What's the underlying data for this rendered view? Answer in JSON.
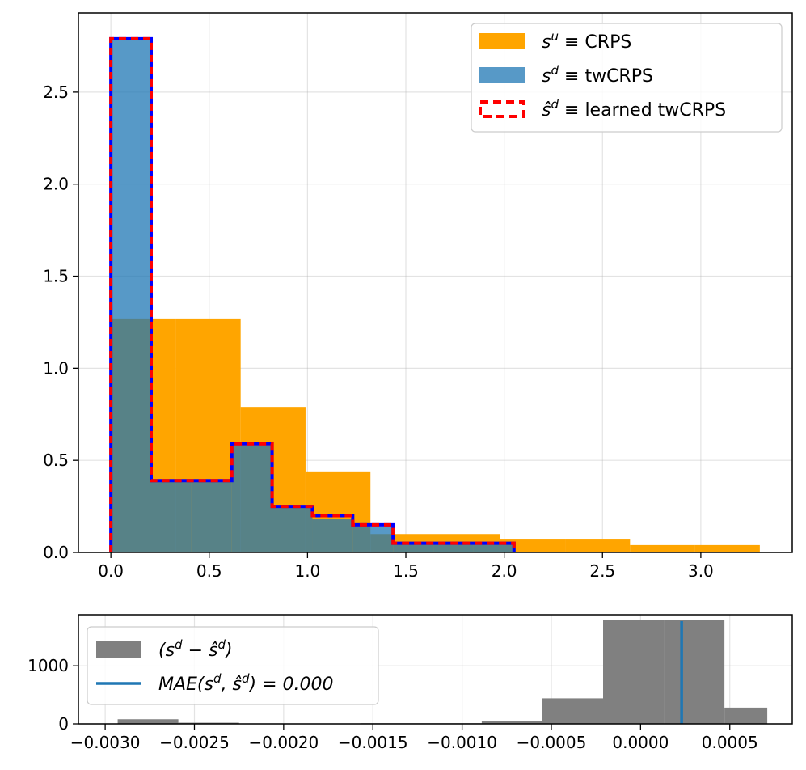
{
  "chart_data": [
    {
      "type": "histogram",
      "title": "",
      "xlabel": "",
      "ylabel": "",
      "xlim": [
        -0.165,
        3.465
      ],
      "ylim": [
        0,
        2.93
      ],
      "grid": true,
      "legend_position": "top-right",
      "x_ticks": [
        0.0,
        0.5,
        1.0,
        1.5,
        2.0,
        2.5,
        3.0
      ],
      "x_tick_labels": [
        "0.0",
        "0.5",
        "1.0",
        "1.5",
        "2.0",
        "2.5",
        "3.0"
      ],
      "y_ticks": [
        0.0,
        0.5,
        1.0,
        1.5,
        2.0,
        2.5
      ],
      "y_tick_labels": [
        "0.0",
        "0.5",
        "1.0",
        "1.5",
        "2.0",
        "2.5"
      ],
      "series": [
        {
          "name": "CRPS",
          "legend_symbol": "s",
          "legend_superscript": "u",
          "legend_relation": "≡",
          "style": "filled",
          "color": "#FFA500",
          "opacity": 1,
          "bins": [
            [
              0.0,
              0.33,
              1.27
            ],
            [
              0.33,
              0.66,
              1.27
            ],
            [
              0.66,
              0.99,
              0.79
            ],
            [
              0.99,
              1.32,
              0.44
            ],
            [
              1.32,
              1.65,
              0.1
            ],
            [
              1.65,
              1.98,
              0.1
            ],
            [
              1.98,
              2.31,
              0.07
            ],
            [
              2.31,
              2.64,
              0.07
            ],
            [
              2.64,
              2.97,
              0.04
            ],
            [
              2.97,
              3.3,
              0.04
            ]
          ]
        },
        {
          "name": "twCRPS",
          "legend_symbol": "s",
          "legend_superscript": "d",
          "legend_relation": "≡",
          "style": "filled",
          "color": "#1F77B4",
          "opacity": 0.75,
          "bins": [
            [
              0.0,
              0.205,
              2.79
            ],
            [
              0.205,
              0.41,
              0.39
            ],
            [
              0.41,
              0.615,
              0.39
            ],
            [
              0.615,
              0.82,
              0.58
            ],
            [
              0.82,
              1.025,
              0.25
            ],
            [
              1.025,
              1.23,
              0.18
            ],
            [
              1.23,
              1.435,
              0.14
            ],
            [
              1.435,
              1.64,
              0.05
            ],
            [
              1.64,
              1.845,
              0.05
            ],
            [
              1.845,
              2.05,
              0.05
            ]
          ]
        },
        {
          "name": "learned twCRPS",
          "legend_symbol": "ŝ",
          "legend_superscript": "d",
          "legend_relation": "≡",
          "style": "step-dashed",
          "color": "#FF0000",
          "dash_color": "#0000FF",
          "bins": [
            [
              0.0,
              0.205,
              2.79
            ],
            [
              0.205,
              0.41,
              0.39
            ],
            [
              0.41,
              0.615,
              0.39
            ],
            [
              0.615,
              0.82,
              0.59
            ],
            [
              0.82,
              1.025,
              0.25
            ],
            [
              1.025,
              1.23,
              0.2
            ],
            [
              1.23,
              1.435,
              0.15
            ],
            [
              1.435,
              1.64,
              0.05
            ],
            [
              1.64,
              1.845,
              0.05
            ],
            [
              1.845,
              2.05,
              0.05
            ]
          ]
        }
      ]
    },
    {
      "type": "histogram",
      "title": "",
      "xlabel": "",
      "ylabel": "",
      "xlim": [
        -0.00315,
        0.00085
      ],
      "ylim": [
        0,
        1880
      ],
      "grid": true,
      "legend_position": "top-left",
      "x_ticks": [
        -0.003,
        -0.0025,
        -0.002,
        -0.0015,
        -0.001,
        -0.0005,
        0.0,
        0.0005
      ],
      "x_tick_labels": [
        "−0.0030",
        "−0.0025",
        "−0.0020",
        "−0.0015",
        "−0.0010",
        "−0.0005",
        "0.0000",
        "0.0005"
      ],
      "y_ticks": [
        0,
        1000
      ],
      "y_tick_labels": [
        "0",
        "1000"
      ],
      "series": [
        {
          "name": "(s^d − ŝ^d)",
          "legend_parts": [
            "(s",
            "d",
            " − ŝ",
            "d",
            ")"
          ],
          "style": "filled",
          "color": "#808080",
          "bins": [
            [
              -0.00293,
              -0.00259,
              80
            ],
            [
              -0.00259,
              -0.00225,
              20
            ],
            [
              -0.00225,
              -0.00191,
              0
            ],
            [
              -0.00191,
              -0.00157,
              0
            ],
            [
              -0.00157,
              -0.00123,
              10
            ],
            [
              -0.00123,
              -0.00089,
              10
            ],
            [
              -0.00089,
              -0.00055,
              50
            ],
            [
              -0.00055,
              -0.00021,
              440
            ],
            [
              -0.00021,
              0.00013,
              1790
            ],
            [
              0.00013,
              0.00047,
              1790
            ],
            [
              0.00047,
              0.00071,
              280
            ]
          ]
        },
        {
          "name": "MAE(s^d, ŝ^d) = 0.000",
          "legend_parts": [
            "MAE(s",
            "d",
            ", ŝ",
            "d",
            ") = 0.000"
          ],
          "style": "vline",
          "color": "#1F77B4",
          "x": 0.00023
        }
      ]
    }
  ]
}
